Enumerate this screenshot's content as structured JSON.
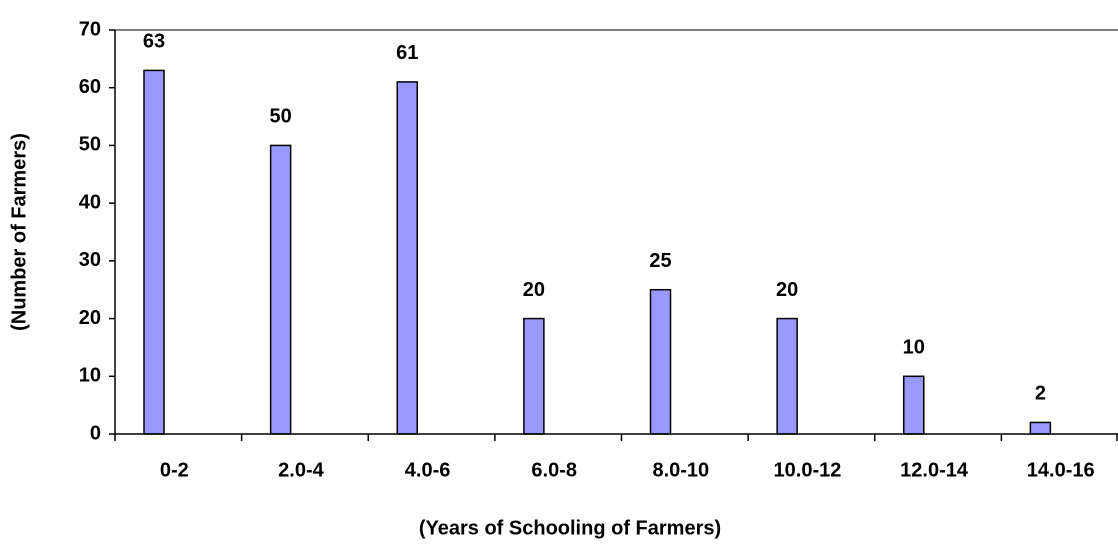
{
  "chart_data": {
    "type": "bar",
    "x_label": "(Years of Schooling of Farmers)",
    "y_label": "(Number of Farmers)",
    "categories": [
      "0-2",
      "2.0-4",
      "4.0-6",
      "6.0-8",
      "8.0-10",
      "10.0-12",
      "12.0-14",
      "14.0-16"
    ],
    "values": [
      63,
      50,
      61,
      20,
      25,
      20,
      10,
      2
    ],
    "color": "#9999ff",
    "ylim": [
      0,
      70
    ],
    "yticks": [
      0,
      10,
      20,
      30,
      40,
      50,
      60,
      70
    ]
  }
}
